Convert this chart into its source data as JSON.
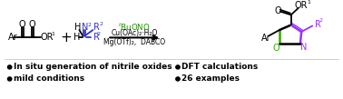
{
  "background_color": "#ffffff",
  "bullet_points_left": [
    "In situ generation of nitrile oxides",
    "mild conditions"
  ],
  "bullet_points_right": [
    "DFT calculations",
    "26 examples"
  ],
  "reagent_line1": "$^{t}$BuONO",
  "reagent_line2": "Cu(OAc)₂·H₂O",
  "reagent_line3": "Mg(OTf)₂,  DABCO",
  "bullet_color": "#000000",
  "purple": "#9B30FF",
  "green": "#33AA00",
  "blue": "#3333CC",
  "reagent_green": "#228B00",
  "black": "#000000",
  "gray_line": "#bbbbbb"
}
